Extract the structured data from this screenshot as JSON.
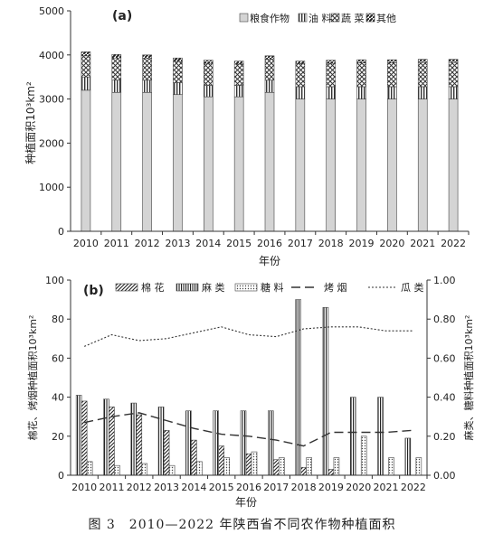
{
  "caption": "图 3　2010—2022 年陕西省不同农作物种植面积",
  "colors": {
    "axis": "#333333",
    "bar_edge": "#444444",
    "fill_light": "#d4d4d4",
    "dark": "#333333"
  },
  "chart_data": [
    {
      "type": "bar",
      "stacked": true,
      "panel_label": "(a)",
      "xlabel": "年份",
      "ylabel": "种植面积10³km²",
      "ylim": [
        0,
        5000
      ],
      "yticks": [
        "0",
        "1000",
        "2000",
        "3000",
        "4000",
        "5000"
      ],
      "categories": [
        "2010",
        "2011",
        "2012",
        "2013",
        "2014",
        "2015",
        "2016",
        "2017",
        "2018",
        "2019",
        "2020",
        "2021",
        "2022"
      ],
      "legend_position": "top-right",
      "series": [
        {
          "name": "粮食作物",
          "values": [
            3200,
            3150,
            3150,
            3100,
            3050,
            3050,
            3150,
            3000,
            3000,
            3000,
            3000,
            3000,
            3000
          ]
        },
        {
          "name": "油 料",
          "values": [
            300,
            280,
            280,
            270,
            260,
            260,
            280,
            280,
            280,
            280,
            280,
            280,
            280
          ]
        },
        {
          "name": "蔬 菜",
          "values": [
            480,
            500,
            490,
            480,
            500,
            480,
            480,
            520,
            530,
            540,
            540,
            550,
            550
          ]
        },
        {
          "name": "其他",
          "values": [
            90,
            80,
            80,
            80,
            70,
            70,
            70,
            60,
            70,
            70,
            70,
            70,
            70
          ]
        }
      ]
    },
    {
      "type": "bar",
      "panel_label": "(b)",
      "xlabel": "年份",
      "ylabel_left": "棉花、烤烟种植面积10³km²",
      "ylabel_right": "麻类、糖料种植面积10³km²",
      "ylim_left": [
        0,
        100
      ],
      "ylim_right": [
        0,
        1.0
      ],
      "yticks_left": [
        "0",
        "20",
        "40",
        "60",
        "80",
        "100"
      ],
      "yticks_right": [
        "0.00",
        "0.20",
        "0.40",
        "0.60",
        "0.80",
        "1.00"
      ],
      "categories": [
        "2010",
        "2011",
        "2012",
        "2013",
        "2014",
        "2015",
        "2016",
        "2017",
        "2018",
        "2019",
        "2020",
        "2021",
        "2022"
      ],
      "legend_position": "top",
      "series": [
        {
          "name": "棉 花",
          "axis": "left",
          "kind": "bar",
          "values": [
            38,
            35,
            31,
            23,
            18,
            15,
            11,
            8,
            4,
            3,
            0,
            0,
            0
          ]
        },
        {
          "name": "麻 类",
          "axis": "right",
          "kind": "bar",
          "values": [
            0.41,
            0.39,
            0.37,
            0.35,
            0.33,
            0.33,
            0.33,
            0.33,
            0.9,
            0.86,
            0.4,
            0.4,
            0.19
          ]
        },
        {
          "name": "糖 料",
          "axis": "right",
          "kind": "bar",
          "values": [
            0.07,
            0.05,
            0.06,
            0.05,
            0.07,
            0.09,
            0.12,
            0.09,
            0.09,
            0.09,
            0.2,
            0.09,
            0.09
          ]
        },
        {
          "name": "烤 烟",
          "axis": "left",
          "kind": "line",
          "style": "dashed",
          "values": [
            27,
            30,
            32,
            28,
            24,
            21,
            20,
            18,
            15,
            22,
            22,
            22,
            23
          ]
        },
        {
          "name": "瓜 类",
          "axis": "right",
          "kind": "line",
          "style": "dotted",
          "values": [
            0.66,
            0.72,
            0.69,
            0.7,
            0.73,
            0.76,
            0.72,
            0.71,
            0.75,
            0.76,
            0.76,
            0.74,
            0.74
          ]
        }
      ]
    }
  ]
}
